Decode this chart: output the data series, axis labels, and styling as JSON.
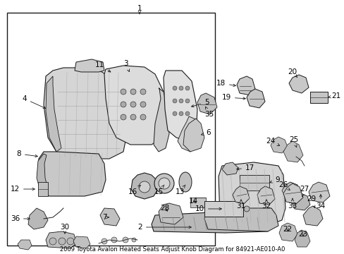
{
  "title": "2009 Toyota Avalon Heated Seats Adjust Knob Diagram for 84921-AE010-A0",
  "bg_color": "#ffffff",
  "fig_width": 4.89,
  "fig_height": 3.6,
  "dpi": 100,
  "line_color": "#1a1a1a",
  "text_color": "#000000",
  "font_size": 7.5,
  "font_size_small": 6.0,
  "gray_fill": "#c8c8c8",
  "gray_dark": "#a0a0a0",
  "gray_light": "#e0e0e0"
}
